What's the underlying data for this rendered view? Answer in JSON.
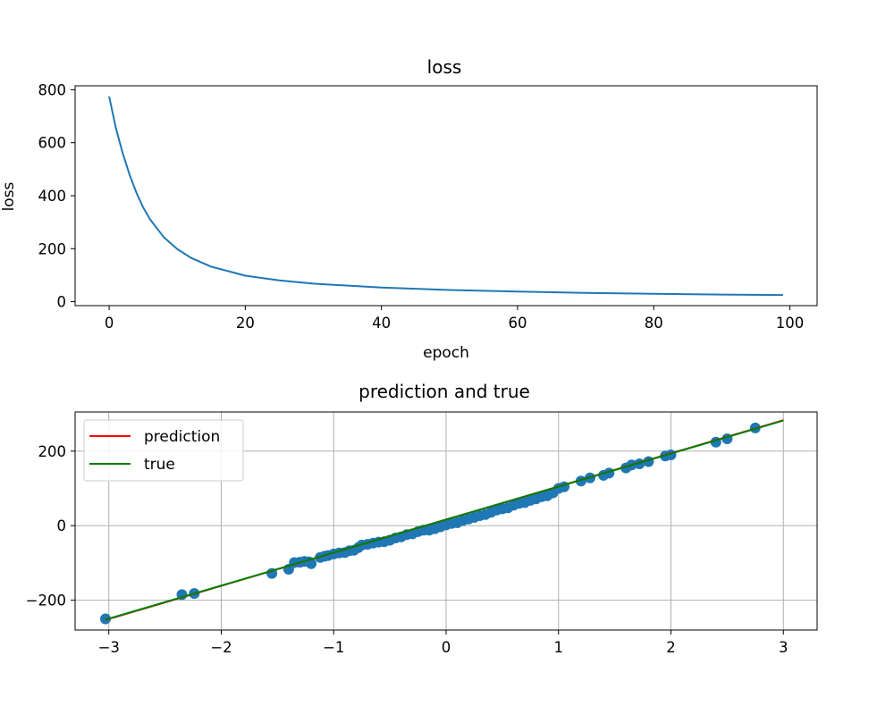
{
  "chart_data": [
    {
      "type": "line",
      "title": "loss",
      "xlabel": "epoch",
      "ylabel": "loss",
      "xlim": [
        -5,
        104
      ],
      "ylim": [
        -15,
        815
      ],
      "xticks": [
        0,
        20,
        40,
        60,
        80,
        100
      ],
      "yticks": [
        0,
        200,
        400,
        600,
        800
      ],
      "grid": false,
      "series": [
        {
          "color": "#1f77b4",
          "x": [
            0,
            1,
            2,
            3,
            4,
            5,
            6,
            8,
            10,
            12,
            15,
            20,
            25,
            30,
            40,
            50,
            60,
            70,
            80,
            90,
            99
          ],
          "y": [
            775,
            654,
            560,
            480,
            412,
            356,
            311,
            244,
            199,
            166,
            132,
            98,
            80,
            68,
            53,
            44,
            38,
            33,
            30,
            27,
            25
          ]
        }
      ]
    },
    {
      "type": "scatter",
      "title": "prediction and true",
      "xlabel": "",
      "ylabel": "",
      "xlim": [
        -3.3,
        3.3
      ],
      "ylim": [
        -280,
        305
      ],
      "xticks": [
        -3,
        -2,
        -1,
        0,
        1,
        2,
        3
      ],
      "ytick_values": [
        -200,
        0,
        200
      ],
      "ytick_labels": [
        "−200",
        "0",
        "200"
      ],
      "xtick_labels": [
        "−3",
        "−2",
        "−1",
        "0",
        "1",
        "2",
        "3"
      ],
      "grid": true,
      "legend_position": "upper-left",
      "points_color": "#1f77b4",
      "points": [
        [
          -3.03,
          -250
        ],
        [
          -2.35,
          -185
        ],
        [
          -2.24,
          -182
        ],
        [
          -1.55,
          -128
        ],
        [
          -1.4,
          -117
        ],
        [
          -1.35,
          -99
        ],
        [
          -1.3,
          -98
        ],
        [
          -1.26,
          -96
        ],
        [
          -1.22,
          -97
        ],
        [
          -1.2,
          -102
        ],
        [
          -1.12,
          -85
        ],
        [
          -1.08,
          -82
        ],
        [
          -1.05,
          -80
        ],
        [
          -1.0,
          -76
        ],
        [
          -0.95,
          -73
        ],
        [
          -0.9,
          -72
        ],
        [
          -0.86,
          -67
        ],
        [
          -0.82,
          -66
        ],
        [
          -0.78,
          -59
        ],
        [
          -0.75,
          -52
        ],
        [
          -0.7,
          -50
        ],
        [
          -0.65,
          -47
        ],
        [
          -0.6,
          -44
        ],
        [
          -0.55,
          -43
        ],
        [
          -0.5,
          -39
        ],
        [
          -0.45,
          -33
        ],
        [
          -0.4,
          -30
        ],
        [
          -0.35,
          -24
        ],
        [
          -0.3,
          -22
        ],
        [
          -0.25,
          -16
        ],
        [
          -0.2,
          -12
        ],
        [
          -0.15,
          -12
        ],
        [
          -0.1,
          -8
        ],
        [
          -0.05,
          -3
        ],
        [
          0.0,
          2
        ],
        [
          0.05,
          6
        ],
        [
          0.1,
          8
        ],
        [
          0.15,
          14
        ],
        [
          0.2,
          18
        ],
        [
          0.25,
          22
        ],
        [
          0.3,
          27
        ],
        [
          0.35,
          30
        ],
        [
          0.4,
          36
        ],
        [
          0.45,
          42
        ],
        [
          0.5,
          45
        ],
        [
          0.55,
          48
        ],
        [
          0.6,
          55
        ],
        [
          0.65,
          60
        ],
        [
          0.7,
          62
        ],
        [
          0.75,
          68
        ],
        [
          0.8,
          72
        ],
        [
          0.85,
          78
        ],
        [
          0.9,
          80
        ],
        [
          0.95,
          88
        ],
        [
          1.0,
          100
        ],
        [
          1.05,
          104
        ],
        [
          1.2,
          120
        ],
        [
          1.28,
          128
        ],
        [
          1.4,
          135
        ],
        [
          1.45,
          141
        ],
        [
          1.6,
          155
        ],
        [
          1.65,
          163
        ],
        [
          1.72,
          166
        ],
        [
          1.8,
          172
        ],
        [
          1.95,
          187
        ],
        [
          2.0,
          190
        ],
        [
          2.4,
          224
        ],
        [
          2.5,
          233
        ],
        [
          2.75,
          262
        ]
      ],
      "series": [
        {
          "name": "prediction",
          "color": "#ff0000",
          "x": [
            -3.03,
            3.0
          ],
          "y": [
            -253,
            283
          ]
        },
        {
          "name": "true",
          "color": "#008000",
          "x": [
            -3.03,
            3.0
          ],
          "y": [
            -252,
            282
          ]
        }
      ]
    }
  ]
}
